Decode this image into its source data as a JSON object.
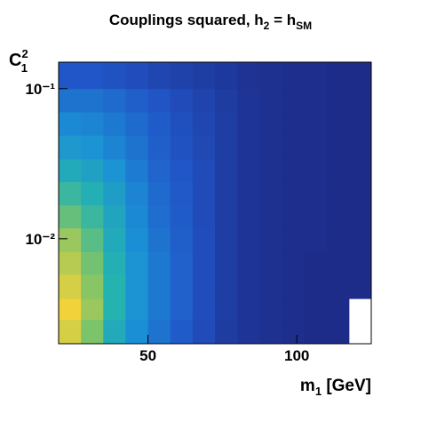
{
  "chart_data": {
    "type": "heatmap",
    "title": [
      "Couplings squared, h",
      "2",
      " = h",
      "SM"
    ],
    "xlabel": [
      "m",
      "1",
      " [GeV]"
    ],
    "ylabel": [
      "C",
      "2",
      "1"
    ],
    "xlim": [
      20,
      125
    ],
    "xticks": [
      50,
      100
    ],
    "ylim": [
      0.002,
      0.15
    ],
    "log_y": true,
    "yticks": [
      {
        "value": 0.1,
        "label": "10⁻¹"
      },
      {
        "value": 0.01,
        "label": "10⁻²"
      }
    ],
    "xbins": [
      20,
      27.5,
      35,
      42.5,
      50,
      57.5,
      65,
      72.5,
      80,
      87.5,
      95,
      102.5,
      110,
      117.5,
      125
    ],
    "ybins": [
      0.002,
      0.0029,
      0.004,
      0.0058,
      0.0082,
      0.0118,
      0.0168,
      0.024,
      0.034,
      0.049,
      0.07,
      0.1,
      0.15
    ],
    "colormap": [
      "#1d2a86",
      "#2156c8",
      "#1b8fd6",
      "#25b3b0",
      "#7cc46a",
      "#f2d23a"
    ],
    "z": [
      [
        95,
        80,
        55,
        40,
        30,
        22,
        15,
        8,
        5,
        3,
        2,
        1,
        1,
        0
      ],
      [
        100,
        85,
        60,
        42,
        32,
        24,
        16,
        9,
        5,
        3,
        2,
        1,
        1,
        0
      ],
      [
        95,
        82,
        60,
        42,
        32,
        24,
        16,
        9,
        5,
        3,
        2,
        1,
        1,
        1
      ],
      [
        90,
        78,
        58,
        42,
        32,
        24,
        16,
        9,
        5,
        3,
        2,
        1,
        1,
        1
      ],
      [
        85,
        72,
        55,
        40,
        30,
        23,
        16,
        9,
        5,
        3,
        2,
        2,
        1,
        1
      ],
      [
        75,
        65,
        52,
        38,
        28,
        22,
        15,
        9,
        5,
        3,
        2,
        2,
        1,
        1
      ],
      [
        65,
        58,
        48,
        36,
        27,
        21,
        15,
        9,
        5,
        3,
        2,
        2,
        1,
        1
      ],
      [
        55,
        50,
        42,
        33,
        25,
        20,
        15,
        9,
        5,
        3,
        2,
        2,
        1,
        1
      ],
      [
        45,
        42,
        36,
        30,
        23,
        18,
        14,
        9,
        5,
        3,
        2,
        2,
        1,
        1
      ],
      [
        38,
        36,
        32,
        27,
        22,
        17,
        13,
        9,
        5,
        3,
        2,
        2,
        1,
        1
      ],
      [
        30,
        30,
        27,
        23,
        19,
        15,
        12,
        8,
        5,
        3,
        2,
        2,
        1,
        1
      ],
      [
        20,
        20,
        18,
        16,
        13,
        11,
        9,
        7,
        4,
        3,
        2,
        2,
        1,
        1
      ]
    ]
  }
}
